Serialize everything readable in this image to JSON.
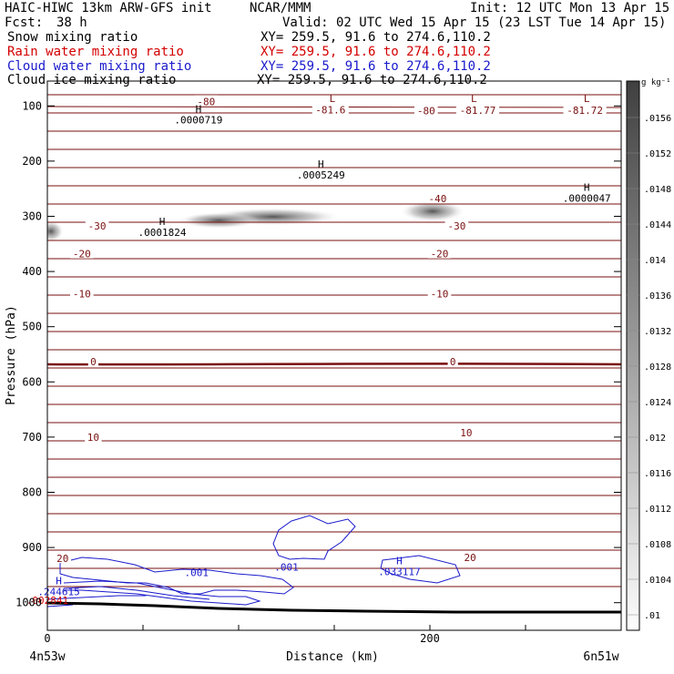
{
  "header": {
    "model": "HAIC-HIWC 13km ARW-GFS init",
    "org": "NCAR/MMM",
    "init": "Init: 12 UTC Mon 13 Apr 15",
    "fcst_label": "Fcst:",
    "fcst_value": "38 h",
    "valid": "Valid: 02 UTC Wed 15 Apr 15 (23 LST Tue 14 Apr 15)"
  },
  "fields": [
    {
      "name": "Snow mixing ratio",
      "xy": "XY= 259.5, 91.6 to 274.6,110.2",
      "color": "#000000"
    },
    {
      "name": "Rain water mixing ratio",
      "xy": "XY= 259.5, 91.6 to 274.6,110.2",
      "color": "#d40000"
    },
    {
      "name": "Cloud water mixing ratio",
      "xy": "XY= 259.5, 91.6 to 274.6,110.2",
      "color": "#1a1acc"
    },
    {
      "name": "Cloud ice mixing ratio",
      "xy": "XY= 259.5, 91.6 to 274.6,110.2",
      "color": "#000000"
    }
  ],
  "chart_data": {
    "type": "cross-section",
    "xlabel": "Distance (km)",
    "ylabel": "Pressure (hPa)",
    "xlim": [
      0,
      300
    ],
    "ylim": [
      1050,
      55
    ],
    "x_ticks": [
      0,
      200
    ],
    "y_ticks": [
      100,
      200,
      300,
      400,
      500,
      600,
      700,
      800,
      900,
      1000
    ],
    "left_endpoint": "4n53w",
    "right_endpoint": "6n51w",
    "colorbar": {
      "unit": "g kg⁻¹",
      "labels": [
        ".0156",
        ".0152",
        ".0148",
        ".0144",
        ".014",
        ".0136",
        ".0132",
        ".0128",
        ".0124",
        ".012",
        ".0116",
        ".0112",
        ".0108",
        ".0104",
        ".01"
      ]
    },
    "temperature_labels": [
      {
        "text": "-80",
        "x": 83,
        "p": 92
      },
      {
        "text": "-81.6",
        "x": 148,
        "p": 107
      },
      {
        "text": "-80",
        "x": 198,
        "p": 109
      },
      {
        "text": "-81.77",
        "x": 225,
        "p": 108
      },
      {
        "text": "-81.72",
        "x": 281,
        "p": 108
      },
      {
        "text": "-40",
        "x": 204,
        "p": 268
      },
      {
        "text": "-30",
        "x": 26,
        "p": 317
      },
      {
        "text": "-30",
        "x": 214,
        "p": 317
      },
      {
        "text": "-20",
        "x": 18,
        "p": 368
      },
      {
        "text": "-20",
        "x": 205,
        "p": 368
      },
      {
        "text": "-10",
        "x": 18,
        "p": 440
      },
      {
        "text": "-10",
        "x": 205,
        "p": 440
      },
      {
        "text": "0",
        "x": 24,
        "p": 563
      },
      {
        "text": "0",
        "x": 212,
        "p": 563
      },
      {
        "text": "10",
        "x": 24,
        "p": 700
      },
      {
        "text": "10",
        "x": 219,
        "p": 692
      },
      {
        "text": "20",
        "x": 8,
        "p": 920
      },
      {
        "text": "20",
        "x": 221,
        "p": 918
      }
    ],
    "extrema": [
      {
        "mark": "H",
        "value": ".0000719",
        "x": 79,
        "p": 112,
        "color": "#000000"
      },
      {
        "mark": "H",
        "value": ".0005249",
        "x": 143,
        "p": 212,
        "color": "#000000"
      },
      {
        "mark": "H",
        "value": ".0000047",
        "x": 282,
        "p": 254,
        "color": "#000000"
      },
      {
        "mark": "H",
        "value": ".0001824",
        "x": 60,
        "p": 316,
        "color": "#000000"
      },
      {
        "mark": "L",
        "value": "",
        "x": 149,
        "p": 93,
        "color": "#7a0f0f"
      },
      {
        "mark": "L",
        "value": "",
        "x": 223,
        "p": 93,
        "color": "#7a0f0f"
      },
      {
        "mark": "L",
        "value": "",
        "x": 282,
        "p": 93,
        "color": "#7a0f0f"
      },
      {
        "mark": "H",
        "value": ".033117",
        "x": 184,
        "p": 930,
        "color": "#1a1acc"
      },
      {
        "mark": "H",
        "value": ".244615",
        "x": 6,
        "p": 967,
        "color": "#1a1acc"
      },
      {
        "mark": "",
        "value": ".002841",
        "x": 0,
        "p": 982,
        "color": "#d40000"
      }
    ],
    "cloud_water_labels": [
      {
        "text": ".001",
        "x": 78,
        "p": 945
      },
      {
        "text": ".001",
        "x": 125,
        "p": 935
      }
    ]
  }
}
